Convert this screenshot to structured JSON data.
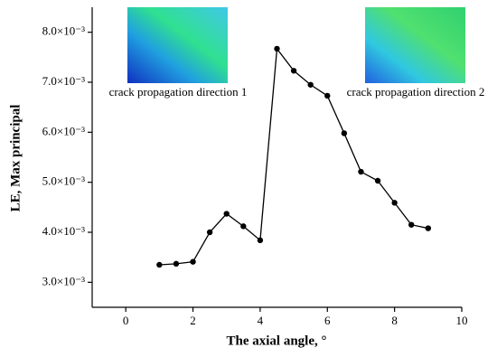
{
  "chart_data": {
    "type": "line",
    "xlabel": "The axial angle, °",
    "ylabel": "LE, Max principal",
    "x": [
      1,
      1.5,
      2,
      2.5,
      3,
      3.5,
      4,
      4.5,
      5,
      5.5,
      6,
      6.5,
      7,
      7.5,
      8,
      8.5,
      9
    ],
    "values": [
      0.00335,
      0.00337,
      0.00341,
      0.004,
      0.00437,
      0.00412,
      0.00384,
      0.00767,
      0.00723,
      0.00695,
      0.00673,
      0.00598,
      0.00521,
      0.00503,
      0.00459,
      0.00415,
      0.00408
    ],
    "color": "#000000",
    "xlim": [
      -1,
      10
    ],
    "xticks": [
      0,
      2,
      4,
      6,
      8,
      10
    ],
    "ylim": [
      0.0025,
      0.0085
    ],
    "yticks": [
      {
        "value": 0.003,
        "label": "3.0×10⁻³"
      },
      {
        "value": 0.004,
        "label": "4.0×10⁻³"
      },
      {
        "value": 0.005,
        "label": "5.0×10⁻³"
      },
      {
        "value": 0.006,
        "label": "6.0×10⁻³"
      },
      {
        "value": 0.007,
        "label": "7.0×10⁻³"
      },
      {
        "value": 0.008,
        "label": "8.0×10⁻³"
      }
    ],
    "annotations": [
      "crack propagation direction 1",
      "crack propagation direction 2"
    ]
  }
}
